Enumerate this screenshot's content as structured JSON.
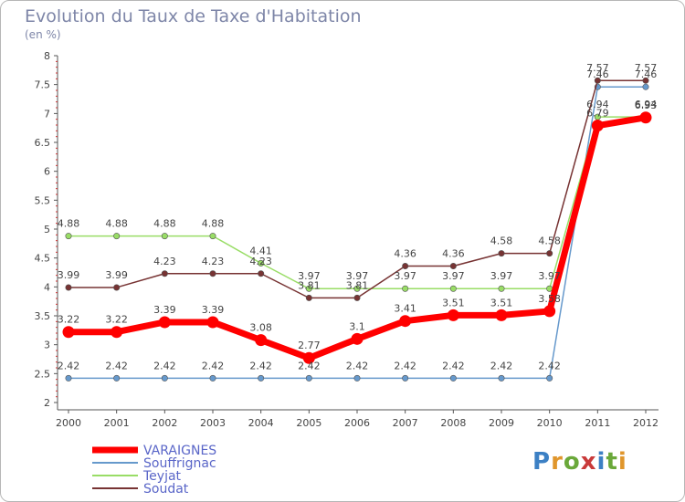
{
  "chart_data": {
    "type": "line",
    "title": "Evolution du Taux de Taxe d'Habitation",
    "subtitle": "(en %)",
    "x": [
      "2000",
      "2001",
      "2002",
      "2003",
      "2004",
      "2005",
      "2006",
      "2007",
      "2008",
      "2009",
      "2010",
      "2011",
      "2012"
    ],
    "ylim": [
      2,
      8
    ],
    "yticks": [
      "2",
      "2.5",
      "3",
      "3.5",
      "4",
      "4.5",
      "5",
      "5.5",
      "6",
      "6.5",
      "7",
      "7.5",
      "8"
    ],
    "grid": false,
    "legend_position": "bottom-left",
    "series": [
      {
        "name": "VARAIGNES",
        "color": "#ff0000",
        "labels": [
          "3.22",
          "3.22",
          "3.39",
          "3.39",
          "3.08",
          "2.77",
          "3.1",
          "3.41",
          "3.51",
          "3.51",
          "3.58",
          "6.79",
          "6.93"
        ],
        "values": [
          3.22,
          3.22,
          3.39,
          3.39,
          3.08,
          2.77,
          3.1,
          3.41,
          3.51,
          3.51,
          3.58,
          6.79,
          6.93
        ]
      },
      {
        "name": "Souffrignac",
        "color": "#6699cc",
        "labels": [
          "2.42",
          "2.42",
          "2.42",
          "2.42",
          "2.42",
          "2.42",
          "2.42",
          "2.42",
          "2.42",
          "2.42",
          "2.42",
          "7.46",
          "7.46"
        ],
        "values": [
          2.42,
          2.42,
          2.42,
          2.42,
          2.42,
          2.42,
          2.42,
          2.42,
          2.42,
          2.42,
          2.42,
          7.46,
          7.46
        ]
      },
      {
        "name": "Teyjat",
        "color": "#99dd66",
        "labels": [
          "4.88",
          "4.88",
          "4.88",
          "4.88",
          "4.41",
          "3.97",
          "3.97",
          "3.97",
          "3.97",
          "3.97",
          "3.97",
          "6.94",
          "6.94"
        ],
        "values": [
          4.88,
          4.88,
          4.88,
          4.88,
          4.41,
          3.97,
          3.97,
          3.97,
          3.97,
          3.97,
          3.97,
          6.94,
          6.94
        ]
      },
      {
        "name": "Soudat",
        "color": "#773333",
        "labels": [
          "3.99",
          "3.99",
          "4.23",
          "4.23",
          "4.23",
          "3.81",
          "3.81",
          "4.36",
          "4.36",
          "4.58",
          "4.58",
          "7.57",
          "7.57"
        ],
        "values": [
          3.99,
          3.99,
          4.23,
          4.23,
          4.23,
          3.81,
          3.81,
          4.36,
          4.36,
          4.58,
          4.58,
          7.57,
          7.57
        ]
      }
    ]
  },
  "logo": {
    "text": "Proxiti"
  }
}
